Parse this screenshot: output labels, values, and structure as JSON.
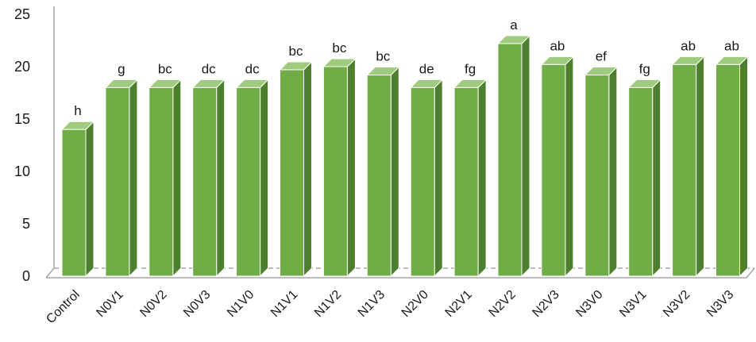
{
  "chart_data": {
    "type": "bar",
    "style": "3d-column",
    "categories": [
      "Control",
      "N0V1",
      "N0V2",
      "N0V3",
      "N1V0",
      "N1V1",
      "N1V2",
      "N1V3",
      "N2V0",
      "N2V1",
      "N2V2",
      "N2V3",
      "N3V0",
      "N3V1",
      "N3V2",
      "N3V3"
    ],
    "values": [
      14,
      18,
      18,
      18,
      18,
      19.7,
      20,
      19.2,
      18,
      18,
      22.2,
      20.2,
      19.2,
      18,
      20.2,
      20.2
    ],
    "labels": [
      "h",
      "g",
      "bc",
      "dc",
      "dc",
      "bc",
      "bc",
      "bc",
      "de",
      "fg",
      "a",
      "ab",
      "ef",
      "fg",
      "ab",
      "ab"
    ],
    "yticks": [
      0,
      5,
      10,
      15,
      20,
      25
    ],
    "ylim": [
      0,
      25
    ],
    "title": "",
    "xlabel": "",
    "ylabel": "",
    "grid": false,
    "legend": "none",
    "colors": {
      "bar_front": "#70ad47",
      "bar_side": "#4d7f2e",
      "bar_top": "#9fcb7c",
      "bar_edge": "#ffffff",
      "axis": "#a6a6a6",
      "floor_line": "#a6a6a6"
    }
  }
}
